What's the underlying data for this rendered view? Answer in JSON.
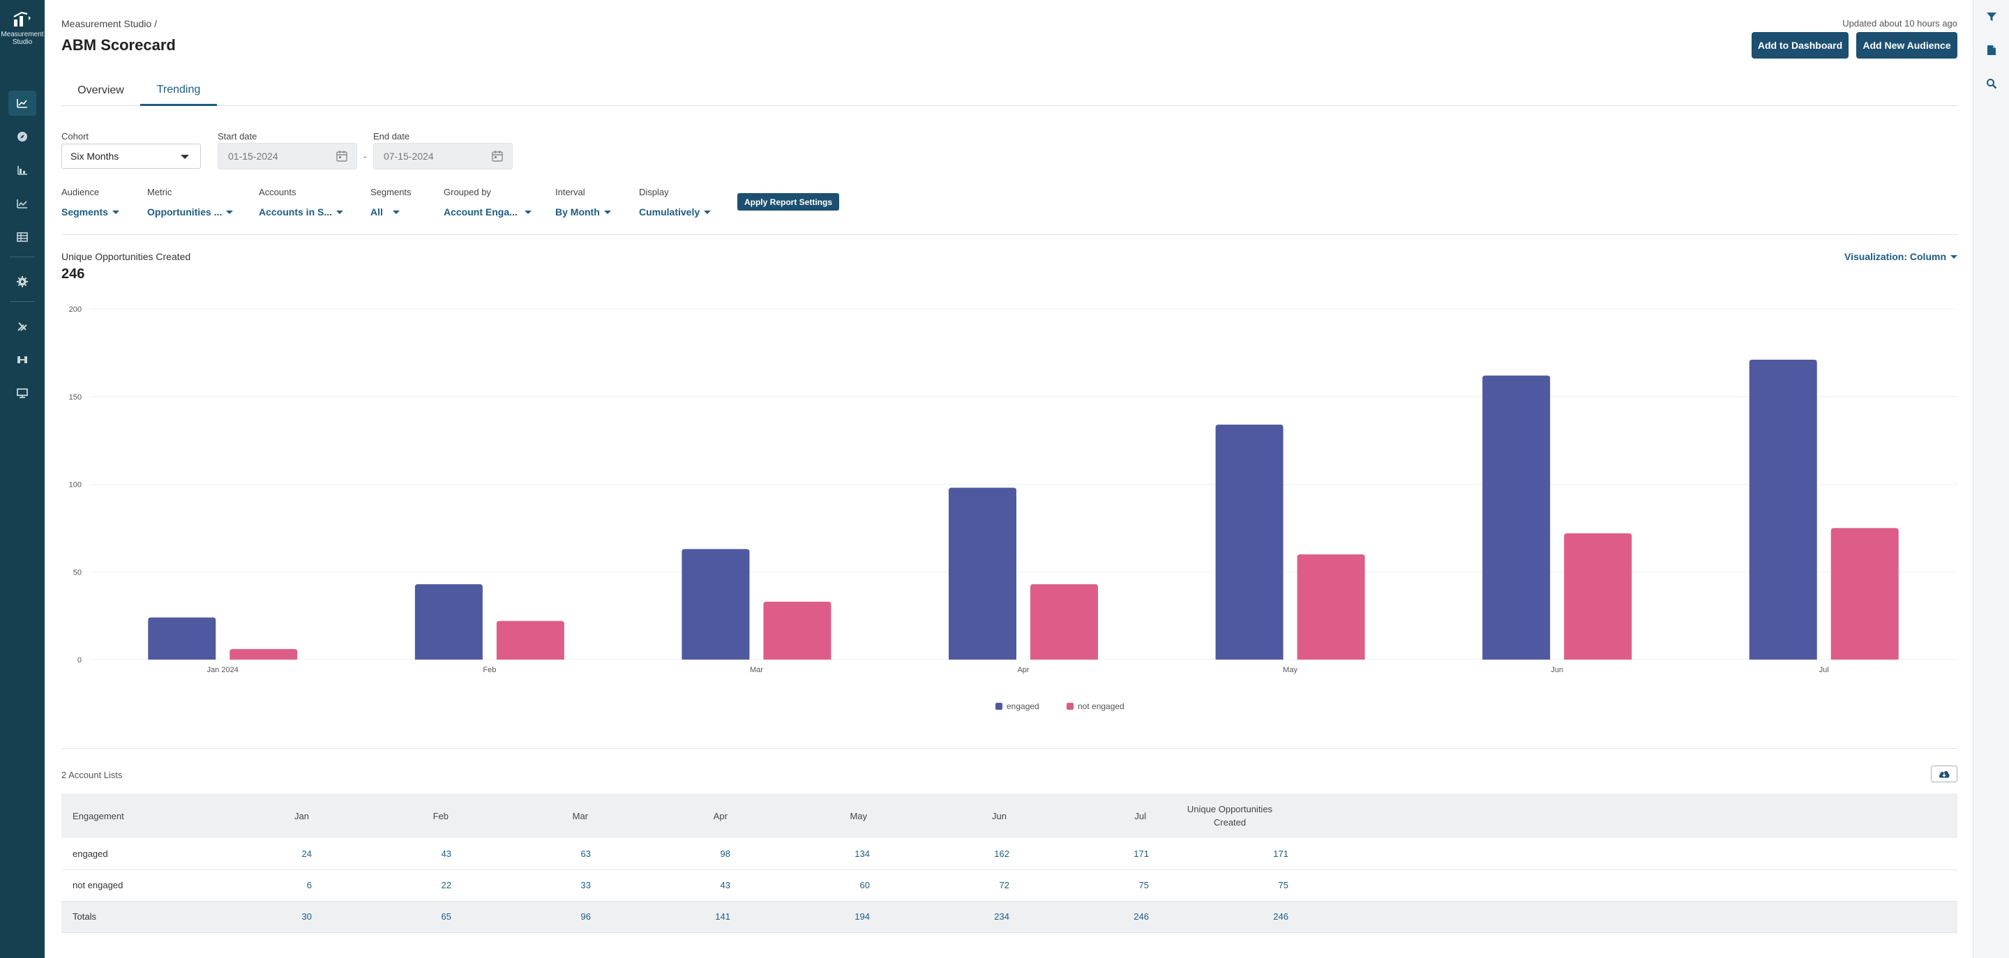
{
  "nav": {
    "logo_text_1": "Measurement",
    "logo_text_2": "Studio"
  },
  "header": {
    "breadcrumb": "Measurement Studio /",
    "title": "ABM Scorecard",
    "updated": "Updated about 10 hours ago",
    "add_dashboard_label": "Add to Dashboard",
    "add_audience_label": "Add New Audience"
  },
  "tabs": [
    {
      "label": "Overview"
    },
    {
      "label": "Trending"
    }
  ],
  "filters": {
    "cohort_label": "Cohort",
    "cohort_value": "Six Months",
    "start_label": "Start date",
    "start_value": "01-15-2024",
    "end_label": "End date",
    "end_value": "07-15-2024",
    "date_sep": "-"
  },
  "settings": {
    "audience": {
      "label": "Audience",
      "value": "Segments"
    },
    "metric": {
      "label": "Metric",
      "value": "Opportunities ..."
    },
    "accounts": {
      "label": "Accounts",
      "value": "Accounts in S..."
    },
    "segments": {
      "label": "Segments",
      "value": "All"
    },
    "grouped": {
      "label": "Grouped by",
      "value": "Account Enga..."
    },
    "interval": {
      "label": "Interval",
      "value": "By Month"
    },
    "display": {
      "label": "Display",
      "value": "Cumulatively"
    },
    "apply_label": "Apply Report Settings"
  },
  "summary": {
    "metric_label": "Unique Opportunities Created",
    "metric_value": "246",
    "visualization_label": "Visualization: Column"
  },
  "chart_data": {
    "type": "bar",
    "title": "Unique Opportunities Created",
    "categories": [
      "Jan 2024",
      "Feb",
      "Mar",
      "Apr",
      "May",
      "Jun",
      "Jul"
    ],
    "series": [
      {
        "name": "engaged",
        "color": "#4f599f",
        "values": [
          24,
          43,
          63,
          98,
          134,
          162,
          171
        ]
      },
      {
        "name": "not engaged",
        "color": "#de5d88",
        "values": [
          6,
          22,
          33,
          43,
          60,
          72,
          75
        ]
      }
    ],
    "ylim": [
      0,
      200
    ],
    "yticks": [
      0,
      50,
      100,
      150,
      200
    ],
    "grid": true,
    "legend": "bottom-center"
  },
  "table": {
    "caption": "2 Account Lists",
    "headers": [
      "Engagement",
      "Jan",
      "Feb",
      "Mar",
      "Apr",
      "May",
      "Jun",
      "Jul",
      "Unique Opportunities",
      "Created"
    ],
    "rows": [
      {
        "name": "engaged",
        "cells": [
          "24",
          "43",
          "63",
          "98",
          "134",
          "162",
          "171",
          "171"
        ]
      },
      {
        "name": "not engaged",
        "cells": [
          "6",
          "22",
          "33",
          "43",
          "60",
          "72",
          "75",
          "75"
        ]
      },
      {
        "name": "Totals",
        "cells": [
          "30",
          "65",
          "96",
          "141",
          "194",
          "234",
          "246",
          "246"
        ]
      }
    ]
  }
}
